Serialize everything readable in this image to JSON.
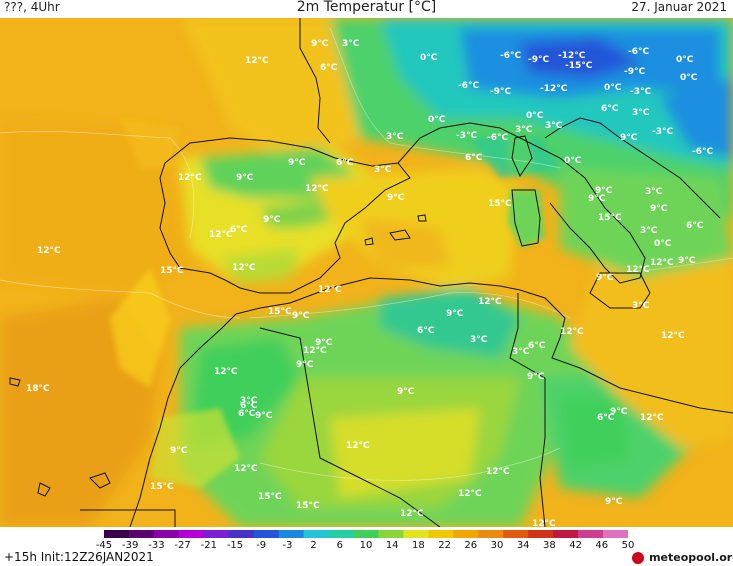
{
  "header": {
    "left": "???, 4Uhr",
    "title": "2m Temperatur [°C]",
    "date": "27. Januar 2021"
  },
  "map": {
    "labels": [
      "12°C",
      "9°C",
      "3°C",
      "6°C",
      "0°C",
      "-6°C",
      "-9°C",
      "-12°C",
      "-15°C",
      "-6°C",
      "0°C",
      "-6°C",
      "-9°C",
      "-12°C",
      "-9°C",
      "0°C",
      "0°C",
      "-3°C",
      "0°C",
      "6°C",
      "3°C",
      "0°C",
      "3°C",
      "-3°C",
      "-6°C",
      "3°C",
      "9°C",
      "-3°C",
      "-6°C",
      "12°C",
      "9°C",
      "6°C",
      "3°C",
      "6°C",
      "0°C",
      "9°C",
      "12°C",
      "9°C",
      "9°C",
      "9°C",
      "3°C",
      "15°C",
      "12°C",
      "15°C",
      "12°C",
      "6°C",
      "3°C",
      "0°C",
      "9°C",
      "12°C",
      "15°C",
      "12°C",
      "12°C",
      "9°C",
      "9°C",
      "3°C",
      "15°C",
      "12°C",
      "6°C",
      "3°C",
      "12°C",
      "12°C",
      "3°C",
      "6°C",
      "9°C",
      "12°C",
      "18°C",
      "12°C",
      "6°C",
      "9°C",
      "9°C",
      "9°C",
      "6°C",
      "9°C",
      "12°C",
      "12°C",
      "12°C",
      "15°C",
      "12°C",
      "15°C",
      "15°C",
      "12°C",
      "12°C",
      "9°C",
      "12°C",
      "9°C",
      "3°C",
      "6°C",
      "12°C",
      "9°C",
      "6°C",
      "9°C",
      "9°C",
      "9°C",
      "3°C"
    ]
  },
  "colorbar": {
    "ticks": [
      "-45",
      "-39",
      "-33",
      "-27",
      "-21",
      "-15",
      "-9",
      "-3",
      "2",
      "6",
      "10",
      "14",
      "18",
      "22",
      "26",
      "30",
      "34",
      "38",
      "42",
      "46",
      "50"
    ],
    "colors": [
      "#3b0049",
      "#5c0070",
      "#8a00a8",
      "#b400d6",
      "#7a1fd6",
      "#4632c8",
      "#2454d8",
      "#1a88e0",
      "#22c4d8",
      "#22cfa0",
      "#3fcf5a",
      "#8ad63a",
      "#e4e41c",
      "#f0c800",
      "#f0a800",
      "#ec8a10",
      "#e05a10",
      "#d0321a",
      "#c01840",
      "#d03c90",
      "#e070c0"
    ]
  },
  "footer": {
    "left": "+15h  Init:12Z26JAN2021",
    "logo_text": "meteopool.org"
  }
}
